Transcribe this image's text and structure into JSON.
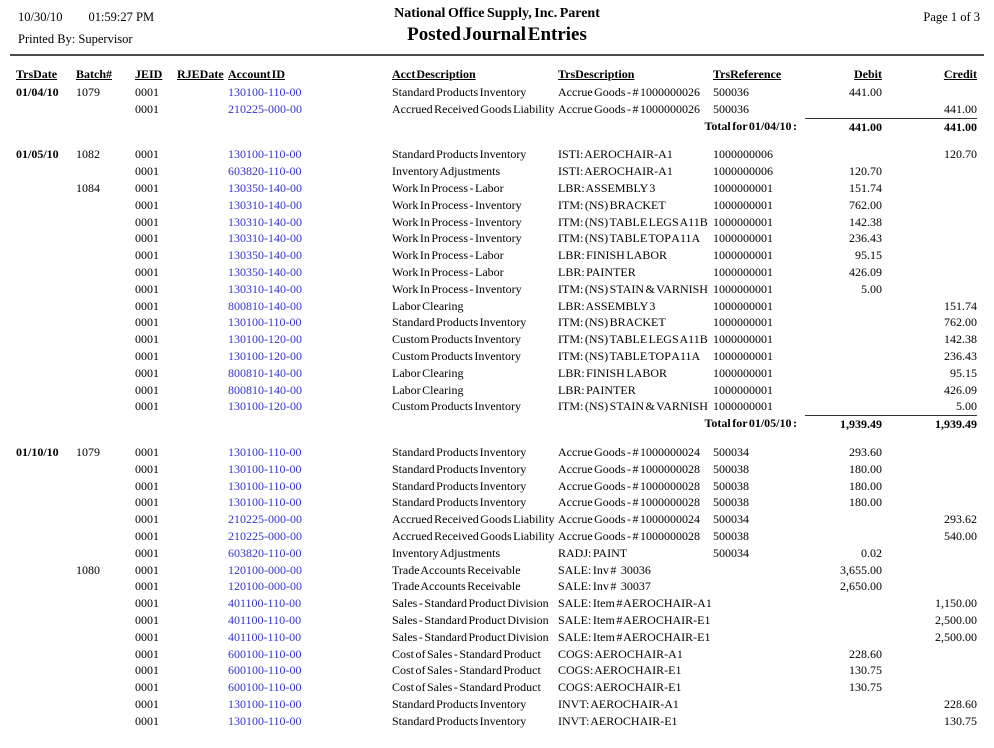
{
  "header": {
    "date": "10/30/10",
    "time": "01:59:27 PM",
    "printed_by_label": "Printed By:",
    "printed_by_value": "Supervisor",
    "company": "National Office Supply, Inc. Parent",
    "title": "Posted Journal Entries",
    "page": "Page 1 of  3"
  },
  "colors": {
    "account_link": "#3333cc",
    "header_rule": "#4d4d4d"
  },
  "table": {
    "columns": [
      "TrsDate",
      "Batch#",
      "JEID",
      "RJEDate",
      "Account ID",
      "Acct Description",
      "TrsDescription",
      "TrsReference",
      "Debit",
      "Credit"
    ],
    "groups": [
      {
        "rows": [
          {
            "trs_date": "01/04/10",
            "batch": "1079",
            "jeid": "0001",
            "rje_date": "",
            "account_id": "130100-110-00",
            "acct_desc": "Standard Products Inventory",
            "trs_desc": "Accrue Goods - # 1000000026",
            "trs_ref": "500036",
            "debit": "441.00",
            "credit": ""
          },
          {
            "trs_date": "",
            "batch": "",
            "jeid": "0001",
            "rje_date": "",
            "account_id": "210225-000-00",
            "acct_desc": "Accrued Received Goods Liability",
            "trs_desc": "Accrue Goods - # 1000000026",
            "trs_ref": "500036",
            "debit": "",
            "credit": "441.00"
          }
        ],
        "total": {
          "label": "Total for 01/04/10 :",
          "debit": "441.00",
          "credit": "441.00"
        }
      },
      {
        "rows": [
          {
            "trs_date": "01/05/10",
            "batch": "1082",
            "jeid": "0001",
            "rje_date": "",
            "account_id": "130100-110-00",
            "acct_desc": "Standard Products Inventory",
            "trs_desc": "ISTI: AEROCHAIR-A1",
            "trs_ref": "1000000006",
            "debit": "",
            "credit": "120.70"
          },
          {
            "trs_date": "",
            "batch": "",
            "jeid": "0001",
            "rje_date": "",
            "account_id": "603820-110-00",
            "acct_desc": "Inventory Adjustments",
            "trs_desc": "ISTI: AEROCHAIR-A1",
            "trs_ref": "1000000006",
            "debit": "120.70",
            "credit": ""
          },
          {
            "trs_date": "",
            "batch": "1084",
            "jeid": "0001",
            "rje_date": "",
            "account_id": "130350-140-00",
            "acct_desc": "Work In Process - Labor",
            "trs_desc": "LBR: ASSEMBLY 3",
            "trs_ref": "1000000001",
            "debit": "151.74",
            "credit": ""
          },
          {
            "trs_date": "",
            "batch": "",
            "jeid": "0001",
            "rje_date": "",
            "account_id": "130310-140-00",
            "acct_desc": "Work In Process - Inventory",
            "trs_desc": "ITM: (NS) BRACKET",
            "trs_ref": "1000000001",
            "debit": "762.00",
            "credit": ""
          },
          {
            "trs_date": "",
            "batch": "",
            "jeid": "0001",
            "rje_date": "",
            "account_id": "130310-140-00",
            "acct_desc": "Work In Process - Inventory",
            "trs_desc": "ITM: (NS) TABLE LEGS A11B",
            "trs_ref": "1000000001",
            "debit": "142.38",
            "credit": ""
          },
          {
            "trs_date": "",
            "batch": "",
            "jeid": "0001",
            "rje_date": "",
            "account_id": "130310-140-00",
            "acct_desc": "Work In Process - Inventory",
            "trs_desc": "ITM: (NS) TABLE TOP A11A",
            "trs_ref": "1000000001",
            "debit": "236.43",
            "credit": ""
          },
          {
            "trs_date": "",
            "batch": "",
            "jeid": "0001",
            "rje_date": "",
            "account_id": "130350-140-00",
            "acct_desc": "Work In Process - Labor",
            "trs_desc": "LBR: FINISH LABOR",
            "trs_ref": "1000000001",
            "debit": "95.15",
            "credit": ""
          },
          {
            "trs_date": "",
            "batch": "",
            "jeid": "0001",
            "rje_date": "",
            "account_id": "130350-140-00",
            "acct_desc": "Work In Process - Labor",
            "trs_desc": "LBR: PAINTER",
            "trs_ref": "1000000001",
            "debit": "426.09",
            "credit": ""
          },
          {
            "trs_date": "",
            "batch": "",
            "jeid": "0001",
            "rje_date": "",
            "account_id": "130310-140-00",
            "acct_desc": "Work In Process - Inventory",
            "trs_desc": "ITM: (NS) STAIN & VARNISH",
            "trs_ref": "1000000001",
            "debit": "5.00",
            "credit": ""
          },
          {
            "trs_date": "",
            "batch": "",
            "jeid": "0001",
            "rje_date": "",
            "account_id": "800810-140-00",
            "acct_desc": "Labor Clearing",
            "trs_desc": "LBR: ASSEMBLY 3",
            "trs_ref": "1000000001",
            "debit": "",
            "credit": "151.74"
          },
          {
            "trs_date": "",
            "batch": "",
            "jeid": "0001",
            "rje_date": "",
            "account_id": "130100-110-00",
            "acct_desc": "Standard Products Inventory",
            "trs_desc": "ITM: (NS) BRACKET",
            "trs_ref": "1000000001",
            "debit": "",
            "credit": "762.00"
          },
          {
            "trs_date": "",
            "batch": "",
            "jeid": "0001",
            "rje_date": "",
            "account_id": "130100-120-00",
            "acct_desc": "Custom Products Inventory",
            "trs_desc": "ITM: (NS) TABLE LEGS A11B",
            "trs_ref": "1000000001",
            "debit": "",
            "credit": "142.38"
          },
          {
            "trs_date": "",
            "batch": "",
            "jeid": "0001",
            "rje_date": "",
            "account_id": "130100-120-00",
            "acct_desc": "Custom Products Inventory",
            "trs_desc": "ITM: (NS) TABLE TOP A11A",
            "trs_ref": "1000000001",
            "debit": "",
            "credit": "236.43"
          },
          {
            "trs_date": "",
            "batch": "",
            "jeid": "0001",
            "rje_date": "",
            "account_id": "800810-140-00",
            "acct_desc": "Labor Clearing",
            "trs_desc": "LBR: FINISH LABOR",
            "trs_ref": "1000000001",
            "debit": "",
            "credit": "95.15"
          },
          {
            "trs_date": "",
            "batch": "",
            "jeid": "0001",
            "rje_date": "",
            "account_id": "800810-140-00",
            "acct_desc": "Labor Clearing",
            "trs_desc": "LBR: PAINTER",
            "trs_ref": "1000000001",
            "debit": "",
            "credit": "426.09"
          },
          {
            "trs_date": "",
            "batch": "",
            "jeid": "0001",
            "rje_date": "",
            "account_id": "130100-120-00",
            "acct_desc": "Custom Products Inventory",
            "trs_desc": "ITM: (NS) STAIN & VARNISH",
            "trs_ref": "1000000001",
            "debit": "",
            "credit": "5.00"
          }
        ],
        "total": {
          "label": "Total for 01/05/10 :",
          "debit": "1,939.49",
          "credit": "1,939.49"
        }
      },
      {
        "rows": [
          {
            "trs_date": "01/10/10",
            "batch": "1079",
            "jeid": "0001",
            "rje_date": "",
            "account_id": "130100-110-00",
            "acct_desc": "Standard Products Inventory",
            "trs_desc": "Accrue Goods - # 1000000024",
            "trs_ref": "500034",
            "debit": "293.60",
            "credit": ""
          },
          {
            "trs_date": "",
            "batch": "",
            "jeid": "0001",
            "rje_date": "",
            "account_id": "130100-110-00",
            "acct_desc": "Standard Products Inventory",
            "trs_desc": "Accrue Goods - # 1000000028",
            "trs_ref": "500038",
            "debit": "180.00",
            "credit": ""
          },
          {
            "trs_date": "",
            "batch": "",
            "jeid": "0001",
            "rje_date": "",
            "account_id": "130100-110-00",
            "acct_desc": "Standard Products Inventory",
            "trs_desc": "Accrue Goods - # 1000000028",
            "trs_ref": "500038",
            "debit": "180.00",
            "credit": ""
          },
          {
            "trs_date": "",
            "batch": "",
            "jeid": "0001",
            "rje_date": "",
            "account_id": "130100-110-00",
            "acct_desc": "Standard Products Inventory",
            "trs_desc": "Accrue Goods - # 1000000028",
            "trs_ref": "500038",
            "debit": "180.00",
            "credit": ""
          },
          {
            "trs_date": "",
            "batch": "",
            "jeid": "0001",
            "rje_date": "",
            "account_id": "210225-000-00",
            "acct_desc": "Accrued Received Goods Liability",
            "trs_desc": "Accrue Goods - # 1000000024",
            "trs_ref": "500034",
            "debit": "",
            "credit": "293.62"
          },
          {
            "trs_date": "",
            "batch": "",
            "jeid": "0001",
            "rje_date": "",
            "account_id": "210225-000-00",
            "acct_desc": "Accrued Received Goods Liability",
            "trs_desc": "Accrue Goods - # 1000000028",
            "trs_ref": "500038",
            "debit": "",
            "credit": "540.00"
          },
          {
            "trs_date": "",
            "batch": "",
            "jeid": "0001",
            "rje_date": "",
            "account_id": "603820-110-00",
            "acct_desc": "Inventory Adjustments",
            "trs_desc": "RADJ: PAINT",
            "trs_ref": "500034",
            "debit": "0.02",
            "credit": ""
          },
          {
            "trs_date": "",
            "batch": "1080",
            "jeid": "0001",
            "rje_date": "",
            "account_id": "120100-000-00",
            "acct_desc": "Trade Accounts Receivable",
            "trs_desc": "SALE: Inv #   30036",
            "trs_ref": "",
            "debit": "3,655.00",
            "credit": ""
          },
          {
            "trs_date": "",
            "batch": "",
            "jeid": "0001",
            "rje_date": "",
            "account_id": "120100-000-00",
            "acct_desc": "Trade Accounts Receivable",
            "trs_desc": "SALE: Inv #   30037",
            "trs_ref": "",
            "debit": "2,650.00",
            "credit": ""
          },
          {
            "trs_date": "",
            "batch": "",
            "jeid": "0001",
            "rje_date": "",
            "account_id": "401100-110-00",
            "acct_desc": "Sales - Standard Product Division",
            "trs_desc": "SALE: Item # AEROCHAIR-A1",
            "trs_ref": "",
            "debit": "",
            "credit": "1,150.00"
          },
          {
            "trs_date": "",
            "batch": "",
            "jeid": "0001",
            "rje_date": "",
            "account_id": "401100-110-00",
            "acct_desc": "Sales - Standard Product Division",
            "trs_desc": "SALE: Item # AEROCHAIR-E1",
            "trs_ref": "",
            "debit": "",
            "credit": "2,500.00"
          },
          {
            "trs_date": "",
            "batch": "",
            "jeid": "0001",
            "rje_date": "",
            "account_id": "401100-110-00",
            "acct_desc": "Sales - Standard Product Division",
            "trs_desc": "SALE: Item # AEROCHAIR-E1",
            "trs_ref": "",
            "debit": "",
            "credit": "2,500.00"
          },
          {
            "trs_date": "",
            "batch": "",
            "jeid": "0001",
            "rje_date": "",
            "account_id": "600100-110-00",
            "acct_desc": "Cost of Sales - Standard Product",
            "trs_desc": "COGS: AEROCHAIR-A1",
            "trs_ref": "",
            "debit": "228.60",
            "credit": ""
          },
          {
            "trs_date": "",
            "batch": "",
            "jeid": "0001",
            "rje_date": "",
            "account_id": "600100-110-00",
            "acct_desc": "Cost of Sales - Standard Product",
            "trs_desc": "COGS: AEROCHAIR-E1",
            "trs_ref": "",
            "debit": "130.75",
            "credit": ""
          },
          {
            "trs_date": "",
            "batch": "",
            "jeid": "0001",
            "rje_date": "",
            "account_id": "600100-110-00",
            "acct_desc": "Cost of Sales - Standard Product",
            "trs_desc": "COGS: AEROCHAIR-E1",
            "trs_ref": "",
            "debit": "130.75",
            "credit": ""
          },
          {
            "trs_date": "",
            "batch": "",
            "jeid": "0001",
            "rje_date": "",
            "account_id": "130100-110-00",
            "acct_desc": "Standard Products Inventory",
            "trs_desc": "INVT: AEROCHAIR-A1",
            "trs_ref": "",
            "debit": "",
            "credit": "228.60"
          },
          {
            "trs_date": "",
            "batch": "",
            "jeid": "0001",
            "rje_date": "",
            "account_id": "130100-110-00",
            "acct_desc": "Standard Products Inventory",
            "trs_desc": "INVT: AEROCHAIR-E1",
            "trs_ref": "",
            "debit": "",
            "credit": "130.75"
          }
        ],
        "total": null
      }
    ]
  }
}
